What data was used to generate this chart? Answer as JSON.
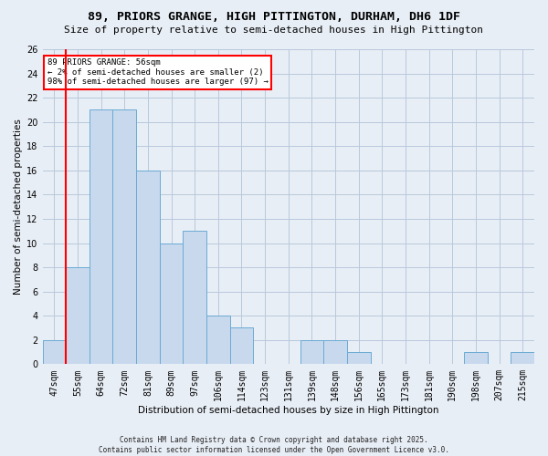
{
  "title": "89, PRIORS GRANGE, HIGH PITTINGTON, DURHAM, DH6 1DF",
  "subtitle": "Size of property relative to semi-detached houses in High Pittington",
  "xlabel": "Distribution of semi-detached houses by size in High Pittington",
  "ylabel": "Number of semi-detached properties",
  "footer": "Contains HM Land Registry data © Crown copyright and database right 2025.\nContains public sector information licensed under the Open Government Licence v3.0.",
  "bin_labels": [
    "47sqm",
    "55sqm",
    "64sqm",
    "72sqm",
    "81sqm",
    "89sqm",
    "97sqm",
    "106sqm",
    "114sqm",
    "123sqm",
    "131sqm",
    "139sqm",
    "148sqm",
    "156sqm",
    "165sqm",
    "173sqm",
    "181sqm",
    "190sqm",
    "198sqm",
    "207sqm",
    "215sqm"
  ],
  "bar_values": [
    2,
    8,
    21,
    21,
    16,
    10,
    11,
    4,
    3,
    0,
    0,
    2,
    2,
    1,
    0,
    0,
    0,
    0,
    1,
    0,
    1
  ],
  "bar_color": "#c8d9ee",
  "bar_edge_color": "#6aaad4",
  "grid_color": "#b8c8dc",
  "background_color": "#e8eef6",
  "red_line_index": 1,
  "annotation_line1": "89 PRIORS GRANGE: 56sqm",
  "annotation_line2": "← 2% of semi-detached houses are smaller (2)",
  "annotation_line3": "98% of semi-detached houses are larger (97) →",
  "annotation_box_facecolor": "white",
  "annotation_box_edgecolor": "red",
  "ylim": [
    0,
    26
  ],
  "yticks": [
    0,
    2,
    4,
    6,
    8,
    10,
    12,
    14,
    16,
    18,
    20,
    22,
    24,
    26
  ],
  "title_fontsize": 9.5,
  "subtitle_fontsize": 8,
  "label_fontsize": 7.5,
  "tick_fontsize": 7,
  "footer_fontsize": 5.5
}
